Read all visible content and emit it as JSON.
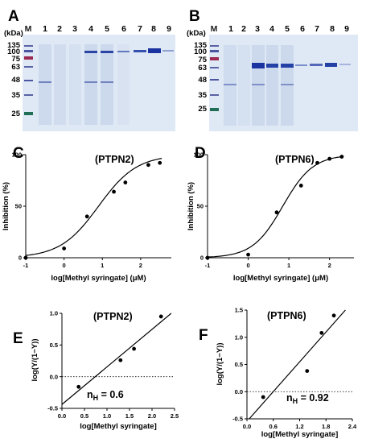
{
  "gels": [
    {
      "panel": "A",
      "unit": "(kDa)",
      "marker_label": "M",
      "lanes": [
        "1",
        "2",
        "3",
        "4",
        "5",
        "6",
        "7",
        "8",
        "9"
      ],
      "markers": [
        "135",
        "100",
        "75",
        "63",
        "48",
        "35",
        "25"
      ],
      "colors": {
        "band": "#1f3fa8",
        "background": "#dfe9f5",
        "marker_red": "#9b2a52",
        "marker_green": "#1f6e55"
      }
    },
    {
      "panel": "B",
      "unit": "(kDa)",
      "marker_label": "M",
      "lanes": [
        "1",
        "2",
        "3",
        "4",
        "5",
        "6",
        "7",
        "8",
        "9"
      ],
      "markers": [
        "135",
        "100",
        "75",
        "63",
        "48",
        "35",
        "25"
      ],
      "colors": {
        "band": "#1f3fa8",
        "background": "#dfe9f5",
        "marker_red": "#9b2a52",
        "marker_green": "#1f6e55"
      }
    }
  ],
  "chart_data": [
    {
      "panel": "C",
      "type": "scatter",
      "title": "(PTPN2)",
      "xlabel": "log[Methyl syringate] (μM)",
      "ylabel": "Inhibition (%)",
      "xlim": [
        -1,
        2.8
      ],
      "ylim": [
        0,
        100
      ],
      "xticks": [
        "-1",
        "0",
        "1",
        "2"
      ],
      "yticks": [
        "0",
        "50",
        "100"
      ],
      "points": [
        [
          -1,
          0
        ],
        [
          0,
          9
        ],
        [
          0.6,
          40
        ],
        [
          1.3,
          64
        ],
        [
          1.6,
          73
        ],
        [
          2.2,
          90
        ],
        [
          2.5,
          92
        ]
      ],
      "fit": "sigmoid"
    },
    {
      "panel": "D",
      "type": "scatter",
      "title": "(PTPN6)",
      "xlabel": "log[Methyl syringate] (μM)",
      "ylabel": "Inhibition (%)",
      "xlim": [
        -1,
        2.6
      ],
      "ylim": [
        0,
        100
      ],
      "xticks": [
        "-1",
        "0",
        "1",
        "2"
      ],
      "yticks": [
        "0",
        "50",
        "100"
      ],
      "points": [
        [
          -1,
          0
        ],
        [
          0,
          3
        ],
        [
          0.7,
          44
        ],
        [
          1.3,
          70
        ],
        [
          1.7,
          92
        ],
        [
          2.0,
          96
        ],
        [
          2.3,
          98
        ]
      ],
      "fit": "sigmoid"
    },
    {
      "panel": "E",
      "type": "scatter",
      "title": "(PTPN2)",
      "xlabel": "log[Methyl syringate]",
      "ylabel": "log(Y/(1−Y))",
      "xlim": [
        0.0,
        2.5
      ],
      "ylim": [
        -0.5,
        1.0
      ],
      "xticks": [
        "0.0",
        "0.5",
        "1.0",
        "1.5",
        "2.0",
        "2.5"
      ],
      "yticks": [
        "-0.5",
        "0.0",
        "0.5",
        "1.0"
      ],
      "points": [
        [
          0.37,
          -0.16
        ],
        [
          1.3,
          0.26
        ],
        [
          1.6,
          0.44
        ],
        [
          2.2,
          0.95
        ]
      ],
      "fit": "linear",
      "annotation": {
        "n": "n",
        "sub": "H",
        "rest": " = 0.6"
      }
    },
    {
      "panel": "F",
      "type": "scatter",
      "title": "(PTPN6)",
      "xlabel": "log[Methyl syringate]",
      "ylabel": "log(Y/(1−Y))",
      "xlim": [
        0.0,
        2.4
      ],
      "ylim": [
        -0.5,
        1.5
      ],
      "xticks": [
        "0.0",
        "0.6",
        "1.2",
        "1.8",
        "2.4"
      ],
      "yticks": [
        "-0.5",
        "0.0",
        "0.5",
        "1.0",
        "1.5"
      ],
      "points": [
        [
          0.37,
          -0.1
        ],
        [
          1.37,
          0.38
        ],
        [
          1.7,
          1.08
        ],
        [
          1.98,
          1.4
        ]
      ],
      "fit": "linear",
      "annotation": {
        "n": "n",
        "sub": "H",
        "rest": " = 0.92"
      }
    }
  ]
}
